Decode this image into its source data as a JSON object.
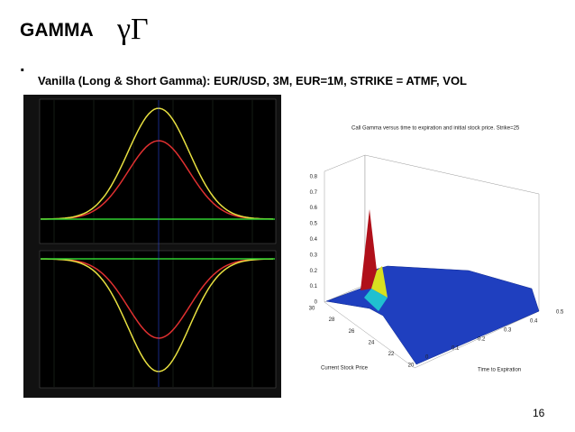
{
  "header": {
    "title": "GAMMA",
    "symbols": "γΓ",
    "bullet": ".",
    "subtitle": "Vanilla (Long & Short Gamma): EUR/USD, 3M, EUR=1M, STRIKE = ATMF, VOL"
  },
  "surface_chart": {
    "title": "Call Gamma versus time to expiration and initial stock price. Strike=25",
    "x_label": "Current Stock Price",
    "y_label": "Time to Expiration",
    "z_ticks": [
      0,
      0.1,
      0.2,
      0.3,
      0.4,
      0.5,
      0.6,
      0.7,
      0.8
    ],
    "price_ticks": [
      30,
      28,
      26,
      24,
      22,
      20
    ],
    "time_ticks": [
      0,
      0.1,
      0.2,
      0.3,
      0.4,
      0.5
    ]
  },
  "page_number": "16"
}
